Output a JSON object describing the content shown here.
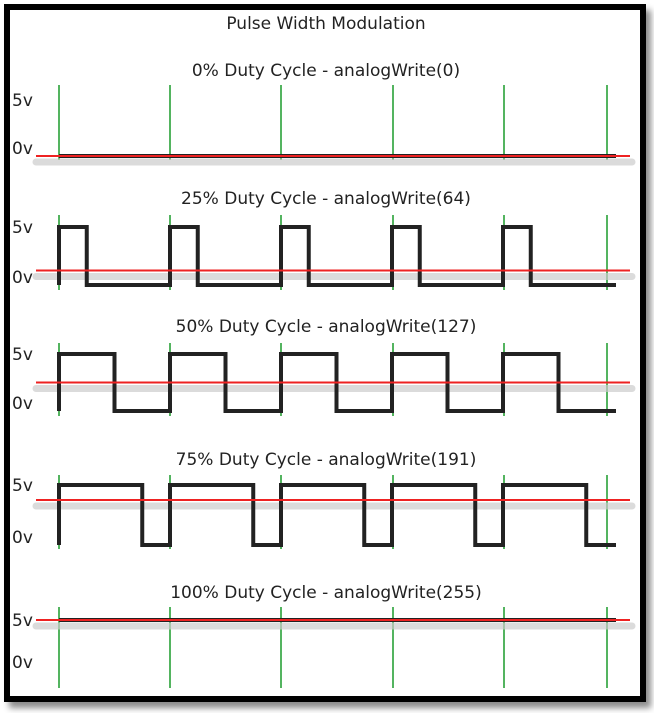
{
  "chart_data": {
    "type": "line",
    "title": "Pulse Width Modulation",
    "level_labels": {
      "high": "5v",
      "low": "0v"
    },
    "periods_shown": 5,
    "panels": [
      {
        "title": "0% Duty Cycle - analogWrite(0)",
        "duty_cycle_percent": 0,
        "analog_write": 0
      },
      {
        "title": "25% Duty Cycle - analogWrite(64)",
        "duty_cycle_percent": 25,
        "analog_write": 64
      },
      {
        "title": "50% Duty Cycle - analogWrite(127)",
        "duty_cycle_percent": 50,
        "analog_write": 127
      },
      {
        "title": "75% Duty Cycle - analogWrite(191)",
        "duty_cycle_percent": 75,
        "analog_write": 191
      },
      {
        "title": "100% Duty Cycle - analogWrite(255)",
        "duty_cycle_percent": 100,
        "analog_write": 255
      }
    ],
    "colors": {
      "signal": "#222222",
      "average": "#ee2222",
      "clock": "#1a9a2a",
      "shadow": "#cccccc"
    }
  }
}
